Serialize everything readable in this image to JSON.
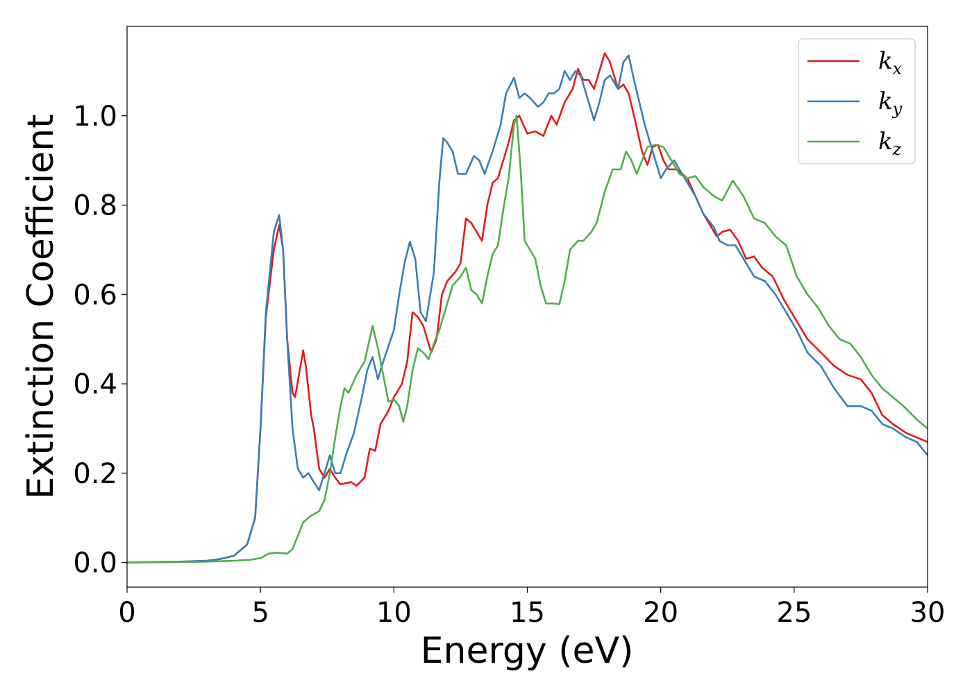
{
  "chart_data": {
    "type": "line",
    "title": "",
    "xlabel": "Energy (eV)",
    "ylabel": "Extinction Coefficient",
    "xlim": [
      0,
      30
    ],
    "ylim": [
      -0.055,
      1.2
    ],
    "xticks": [
      0,
      5,
      10,
      15,
      20,
      25,
      30
    ],
    "xtick_labels": [
      "0",
      "5",
      "10",
      "15",
      "20",
      "25",
      "30"
    ],
    "yticks": [
      0.0,
      0.2,
      0.4,
      0.6,
      0.8,
      1.0
    ],
    "ytick_labels": [
      "0.0",
      "0.2",
      "0.4",
      "0.6",
      "0.8",
      "1.0"
    ],
    "grid": false,
    "legend_position": "top-right",
    "series": [
      {
        "name": "k",
        "subscript": "x",
        "color": "#e41a1c",
        "points": [
          [
            0,
            0.0
          ],
          [
            1,
            0.001
          ],
          [
            2,
            0.002
          ],
          [
            3,
            0.004
          ],
          [
            3.5,
            0.008
          ],
          [
            4,
            0.015
          ],
          [
            4.5,
            0.04
          ],
          [
            4.8,
            0.1
          ],
          [
            5,
            0.3
          ],
          [
            5.2,
            0.55
          ],
          [
            5.5,
            0.7
          ],
          [
            5.7,
            0.755
          ],
          [
            5.85,
            0.7
          ],
          [
            6,
            0.5
          ],
          [
            6.2,
            0.38
          ],
          [
            6.3,
            0.37
          ],
          [
            6.5,
            0.44
          ],
          [
            6.6,
            0.475
          ],
          [
            6.7,
            0.44
          ],
          [
            6.9,
            0.33
          ],
          [
            7,
            0.3
          ],
          [
            7.2,
            0.21
          ],
          [
            7.4,
            0.19
          ],
          [
            7.6,
            0.21
          ],
          [
            7.8,
            0.19
          ],
          [
            8,
            0.175
          ],
          [
            8.4,
            0.18
          ],
          [
            8.6,
            0.172
          ],
          [
            8.9,
            0.19
          ],
          [
            9.1,
            0.255
          ],
          [
            9.3,
            0.25
          ],
          [
            9.5,
            0.31
          ],
          [
            9.8,
            0.34
          ],
          [
            10,
            0.37
          ],
          [
            10.3,
            0.4
          ],
          [
            10.5,
            0.45
          ],
          [
            10.7,
            0.56
          ],
          [
            10.9,
            0.55
          ],
          [
            11.1,
            0.53
          ],
          [
            11.4,
            0.47
          ],
          [
            11.6,
            0.5
          ],
          [
            11.8,
            0.6
          ],
          [
            12,
            0.63
          ],
          [
            12.3,
            0.65
          ],
          [
            12.5,
            0.67
          ],
          [
            12.7,
            0.77
          ],
          [
            12.9,
            0.76
          ],
          [
            13.1,
            0.74
          ],
          [
            13.3,
            0.72
          ],
          [
            13.5,
            0.8
          ],
          [
            13.7,
            0.85
          ],
          [
            13.9,
            0.86
          ],
          [
            14.1,
            0.9
          ],
          [
            14.3,
            0.94
          ],
          [
            14.5,
            0.99
          ],
          [
            14.7,
            1.0
          ],
          [
            15,
            0.96
          ],
          [
            15.3,
            0.965
          ],
          [
            15.6,
            0.955
          ],
          [
            15.9,
            1.0
          ],
          [
            16.1,
            0.98
          ],
          [
            16.4,
            1.03
          ],
          [
            16.7,
            1.06
          ],
          [
            16.9,
            1.105
          ],
          [
            17.1,
            1.08
          ],
          [
            17.3,
            1.08
          ],
          [
            17.5,
            1.06
          ],
          [
            17.7,
            1.1
          ],
          [
            17.9,
            1.14
          ],
          [
            18.1,
            1.12
          ],
          [
            18.3,
            1.08
          ],
          [
            18.4,
            1.06
          ],
          [
            18.6,
            1.07
          ],
          [
            18.8,
            1.05
          ],
          [
            19,
            1.0
          ],
          [
            19.3,
            0.92
          ],
          [
            19.5,
            0.89
          ],
          [
            19.7,
            0.93
          ],
          [
            19.9,
            0.935
          ],
          [
            20.1,
            0.9
          ],
          [
            20.3,
            0.88
          ],
          [
            20.6,
            0.88
          ],
          [
            21,
            0.86
          ],
          [
            21.3,
            0.82
          ],
          [
            21.6,
            0.78
          ],
          [
            21.9,
            0.75
          ],
          [
            22.1,
            0.73
          ],
          [
            22.3,
            0.74
          ],
          [
            22.6,
            0.745
          ],
          [
            22.9,
            0.72
          ],
          [
            23.2,
            0.68
          ],
          [
            23.5,
            0.685
          ],
          [
            23.8,
            0.66
          ],
          [
            24.2,
            0.64
          ],
          [
            24.6,
            0.59
          ],
          [
            25,
            0.55
          ],
          [
            25.5,
            0.5
          ],
          [
            26,
            0.47
          ],
          [
            26.5,
            0.44
          ],
          [
            27,
            0.42
          ],
          [
            27.5,
            0.41
          ],
          [
            27.9,
            0.38
          ],
          [
            28.3,
            0.33
          ],
          [
            28.7,
            0.31
          ],
          [
            29.2,
            0.29
          ],
          [
            29.6,
            0.28
          ],
          [
            30,
            0.27
          ]
        ]
      },
      {
        "name": "k",
        "subscript": "y",
        "color": "#377eb8",
        "points": [
          [
            0,
            0.0
          ],
          [
            1,
            0.001
          ],
          [
            2,
            0.002
          ],
          [
            3,
            0.004
          ],
          [
            3.5,
            0.008
          ],
          [
            4,
            0.015
          ],
          [
            4.5,
            0.04
          ],
          [
            4.8,
            0.1
          ],
          [
            5,
            0.3
          ],
          [
            5.2,
            0.56
          ],
          [
            5.5,
            0.74
          ],
          [
            5.7,
            0.778
          ],
          [
            5.85,
            0.7
          ],
          [
            6,
            0.5
          ],
          [
            6.2,
            0.3
          ],
          [
            6.4,
            0.21
          ],
          [
            6.6,
            0.19
          ],
          [
            6.8,
            0.2
          ],
          [
            7,
            0.18
          ],
          [
            7.2,
            0.162
          ],
          [
            7.4,
            0.2
          ],
          [
            7.6,
            0.24
          ],
          [
            7.8,
            0.2
          ],
          [
            8,
            0.2
          ],
          [
            8.2,
            0.24
          ],
          [
            8.5,
            0.29
          ],
          [
            8.8,
            0.37
          ],
          [
            9,
            0.43
          ],
          [
            9.2,
            0.46
          ],
          [
            9.4,
            0.41
          ],
          [
            9.6,
            0.45
          ],
          [
            10,
            0.52
          ],
          [
            10.2,
            0.6
          ],
          [
            10.4,
            0.67
          ],
          [
            10.6,
            0.718
          ],
          [
            10.8,
            0.68
          ],
          [
            11,
            0.56
          ],
          [
            11.2,
            0.54
          ],
          [
            11.5,
            0.65
          ],
          [
            11.7,
            0.85
          ],
          [
            11.85,
            0.95
          ],
          [
            12,
            0.94
          ],
          [
            12.2,
            0.92
          ],
          [
            12.4,
            0.87
          ],
          [
            12.7,
            0.87
          ],
          [
            13,
            0.91
          ],
          [
            13.2,
            0.9
          ],
          [
            13.4,
            0.87
          ],
          [
            13.7,
            0.92
          ],
          [
            14,
            0.98
          ],
          [
            14.2,
            1.05
          ],
          [
            14.5,
            1.085
          ],
          [
            14.7,
            1.04
          ],
          [
            14.9,
            1.05
          ],
          [
            15.1,
            1.04
          ],
          [
            15.4,
            1.02
          ],
          [
            15.6,
            1.03
          ],
          [
            15.8,
            1.05
          ],
          [
            16,
            1.05
          ],
          [
            16.2,
            1.06
          ],
          [
            16.4,
            1.1
          ],
          [
            16.6,
            1.08
          ],
          [
            16.8,
            1.1
          ],
          [
            17,
            1.09
          ],
          [
            17.2,
            1.05
          ],
          [
            17.5,
            0.99
          ],
          [
            17.7,
            1.03
          ],
          [
            17.9,
            1.08
          ],
          [
            18.1,
            1.09
          ],
          [
            18.4,
            1.06
          ],
          [
            18.6,
            1.12
          ],
          [
            18.8,
            1.135
          ],
          [
            19,
            1.08
          ],
          [
            19.2,
            1.03
          ],
          [
            19.4,
            0.98
          ],
          [
            19.6,
            0.94
          ],
          [
            19.8,
            0.9
          ],
          [
            20,
            0.86
          ],
          [
            20.2,
            0.88
          ],
          [
            20.5,
            0.9
          ],
          [
            20.8,
            0.87
          ],
          [
            21,
            0.85
          ],
          [
            21.3,
            0.82
          ],
          [
            21.6,
            0.78
          ],
          [
            22,
            0.75
          ],
          [
            22.2,
            0.72
          ],
          [
            22.5,
            0.71
          ],
          [
            22.8,
            0.71
          ],
          [
            23.2,
            0.67
          ],
          [
            23.5,
            0.64
          ],
          [
            23.9,
            0.63
          ],
          [
            24.3,
            0.6
          ],
          [
            24.7,
            0.56
          ],
          [
            25.1,
            0.52
          ],
          [
            25.5,
            0.47
          ],
          [
            26,
            0.44
          ],
          [
            26.5,
            0.39
          ],
          [
            27,
            0.35
          ],
          [
            27.5,
            0.35
          ],
          [
            27.9,
            0.34
          ],
          [
            28.3,
            0.31
          ],
          [
            28.7,
            0.3
          ],
          [
            29.2,
            0.28
          ],
          [
            29.6,
            0.27
          ],
          [
            30,
            0.24
          ]
        ]
      },
      {
        "name": "k",
        "subscript": "z",
        "color": "#4daf4a",
        "points": [
          [
            0,
            0.0
          ],
          [
            1,
            0.0005
          ],
          [
            2,
            0.001
          ],
          [
            3,
            0.002
          ],
          [
            4,
            0.004
          ],
          [
            4.6,
            0.006
          ],
          [
            5,
            0.01
          ],
          [
            5.3,
            0.02
          ],
          [
            5.6,
            0.022
          ],
          [
            6,
            0.02
          ],
          [
            6.2,
            0.03
          ],
          [
            6.4,
            0.06
          ],
          [
            6.6,
            0.09
          ],
          [
            6.9,
            0.105
          ],
          [
            7.2,
            0.115
          ],
          [
            7.4,
            0.14
          ],
          [
            7.6,
            0.2
          ],
          [
            7.8,
            0.28
          ],
          [
            8,
            0.35
          ],
          [
            8.15,
            0.39
          ],
          [
            8.3,
            0.38
          ],
          [
            8.6,
            0.42
          ],
          [
            8.9,
            0.45
          ],
          [
            9.2,
            0.53
          ],
          [
            9.4,
            0.48
          ],
          [
            9.6,
            0.42
          ],
          [
            9.8,
            0.36
          ],
          [
            10,
            0.365
          ],
          [
            10.2,
            0.35
          ],
          [
            10.35,
            0.315
          ],
          [
            10.5,
            0.35
          ],
          [
            10.7,
            0.43
          ],
          [
            10.9,
            0.48
          ],
          [
            11.1,
            0.47
          ],
          [
            11.3,
            0.455
          ],
          [
            11.5,
            0.49
          ],
          [
            11.7,
            0.52
          ],
          [
            12,
            0.58
          ],
          [
            12.2,
            0.62
          ],
          [
            12.5,
            0.64
          ],
          [
            12.7,
            0.66
          ],
          [
            12.9,
            0.61
          ],
          [
            13.1,
            0.6
          ],
          [
            13.3,
            0.58
          ],
          [
            13.5,
            0.64
          ],
          [
            13.7,
            0.69
          ],
          [
            13.9,
            0.71
          ],
          [
            14.1,
            0.79
          ],
          [
            14.3,
            0.86
          ],
          [
            14.5,
            0.98
          ],
          [
            14.6,
            1.0
          ],
          [
            14.75,
            0.88
          ],
          [
            14.9,
            0.72
          ],
          [
            15.1,
            0.7
          ],
          [
            15.3,
            0.68
          ],
          [
            15.5,
            0.62
          ],
          [
            15.7,
            0.58
          ],
          [
            16,
            0.58
          ],
          [
            16.2,
            0.578
          ],
          [
            16.4,
            0.63
          ],
          [
            16.6,
            0.7
          ],
          [
            16.9,
            0.72
          ],
          [
            17.1,
            0.72
          ],
          [
            17.4,
            0.74
          ],
          [
            17.6,
            0.76
          ],
          [
            17.9,
            0.83
          ],
          [
            18.2,
            0.88
          ],
          [
            18.5,
            0.88
          ],
          [
            18.7,
            0.92
          ],
          [
            18.9,
            0.9
          ],
          [
            19.1,
            0.87
          ],
          [
            19.3,
            0.9
          ],
          [
            19.5,
            0.93
          ],
          [
            19.8,
            0.935
          ],
          [
            20.1,
            0.93
          ],
          [
            20.4,
            0.9
          ],
          [
            20.7,
            0.87
          ],
          [
            21,
            0.86
          ],
          [
            21.3,
            0.865
          ],
          [
            21.6,
            0.84
          ],
          [
            22,
            0.82
          ],
          [
            22.3,
            0.81
          ],
          [
            22.7,
            0.855
          ],
          [
            23.1,
            0.82
          ],
          [
            23.5,
            0.77
          ],
          [
            23.9,
            0.76
          ],
          [
            24.3,
            0.73
          ],
          [
            24.7,
            0.71
          ],
          [
            25.1,
            0.64
          ],
          [
            25.5,
            0.6
          ],
          [
            25.9,
            0.57
          ],
          [
            26.3,
            0.53
          ],
          [
            26.7,
            0.5
          ],
          [
            27.1,
            0.49
          ],
          [
            27.5,
            0.46
          ],
          [
            27.9,
            0.42
          ],
          [
            28.3,
            0.39
          ],
          [
            28.7,
            0.37
          ],
          [
            29.1,
            0.35
          ],
          [
            29.6,
            0.32
          ],
          [
            30,
            0.3
          ]
        ]
      }
    ]
  }
}
